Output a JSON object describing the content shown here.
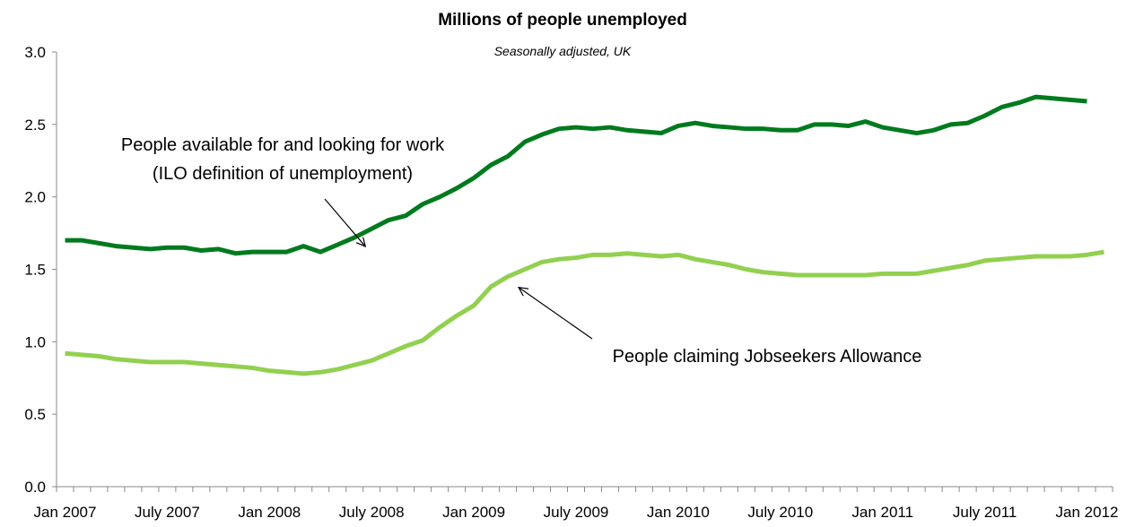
{
  "chart_data": {
    "type": "line",
    "title": "Millions of people unemployed",
    "subtitle": "Seasonally adjusted, UK",
    "xlabel": "",
    "ylabel": "",
    "ylim": [
      0,
      3.0
    ],
    "y_ticks": [
      "0.0",
      "0.5",
      "1.0",
      "1.5",
      "2.0",
      "2.5",
      "3.0"
    ],
    "x_tick_labels": [
      "Jan 2007",
      "July 2007",
      "Jan 2008",
      "July 2008",
      "Jan 2009",
      "July 2009",
      "Jan 2010",
      "July 2010",
      "Jan 2011",
      "July 2011",
      "Jan 2012"
    ],
    "grid": false,
    "legend": "none",
    "x": [
      "Jan 2007",
      "Feb 2007",
      "Mar 2007",
      "Apr 2007",
      "May 2007",
      "Jun 2007",
      "Jul 2007",
      "Aug 2007",
      "Sep 2007",
      "Oct 2007",
      "Nov 2007",
      "Dec 2007",
      "Jan 2008",
      "Feb 2008",
      "Mar 2008",
      "Apr 2008",
      "May 2008",
      "Jun 2008",
      "Jul 2008",
      "Aug 2008",
      "Sep 2008",
      "Oct 2008",
      "Nov 2008",
      "Dec 2008",
      "Jan 2009",
      "Feb 2009",
      "Mar 2009",
      "Apr 2009",
      "May 2009",
      "Jun 2009",
      "Jul 2009",
      "Aug 2009",
      "Sep 2009",
      "Oct 2009",
      "Nov 2009",
      "Dec 2009",
      "Jan 2010",
      "Feb 2010",
      "Mar 2010",
      "Apr 2010",
      "May 2010",
      "Jun 2010",
      "Jul 2010",
      "Aug 2010",
      "Sep 2010",
      "Oct 2010",
      "Nov 2010",
      "Dec 2010",
      "Jan 2011",
      "Feb 2011",
      "Mar 2011",
      "Apr 2011",
      "May 2011",
      "Jun 2011",
      "Jul 2011",
      "Aug 2011",
      "Sep 2011",
      "Oct 2011",
      "Nov 2011",
      "Dec 2011",
      "Jan 2012",
      "Feb 2012"
    ],
    "series": [
      {
        "color": "#007a1e",
        "values": [
          1.7,
          1.7,
          1.68,
          1.66,
          1.65,
          1.64,
          1.65,
          1.65,
          1.63,
          1.64,
          1.61,
          1.62,
          1.62,
          1.62,
          1.66,
          1.62,
          1.67,
          1.72,
          1.78,
          1.84,
          1.87,
          1.95,
          2.0,
          2.06,
          2.13,
          2.22,
          2.28,
          2.38,
          2.43,
          2.47,
          2.48,
          2.47,
          2.48,
          2.46,
          2.45,
          2.44,
          2.49,
          2.51,
          2.49,
          2.48,
          2.47,
          2.47,
          2.46,
          2.46,
          2.5,
          2.5,
          2.49,
          2.52,
          2.48,
          2.46,
          2.44,
          2.46,
          2.5,
          2.51,
          2.56,
          2.62,
          2.65,
          2.69,
          2.68,
          2.67,
          2.66,
          null
        ]
      },
      {
        "color": "#92d050",
        "values": [
          0.92,
          0.91,
          0.9,
          0.88,
          0.87,
          0.86,
          0.86,
          0.86,
          0.85,
          0.84,
          0.83,
          0.82,
          0.8,
          0.79,
          0.78,
          0.79,
          0.81,
          0.84,
          0.87,
          0.92,
          0.97,
          1.01,
          1.1,
          1.18,
          1.25,
          1.38,
          1.45,
          1.5,
          1.55,
          1.57,
          1.58,
          1.6,
          1.6,
          1.61,
          1.6,
          1.59,
          1.6,
          1.57,
          1.55,
          1.53,
          1.5,
          1.48,
          1.47,
          1.46,
          1.46,
          1.46,
          1.46,
          1.46,
          1.47,
          1.47,
          1.47,
          1.49,
          1.51,
          1.53,
          1.56,
          1.57,
          1.58,
          1.59,
          1.59,
          1.59,
          1.6,
          1.62
        ]
      }
    ],
    "annotations": [
      {
        "lines": [
          "People available for and looking for work",
          "(ILO definition of unemployment)"
        ],
        "target_index": 18,
        "target_value": 1.72
      },
      {
        "lines": [
          "People claiming Jobseekers Allowance"
        ],
        "target_index": 26,
        "target_value": 1.45
      }
    ]
  }
}
